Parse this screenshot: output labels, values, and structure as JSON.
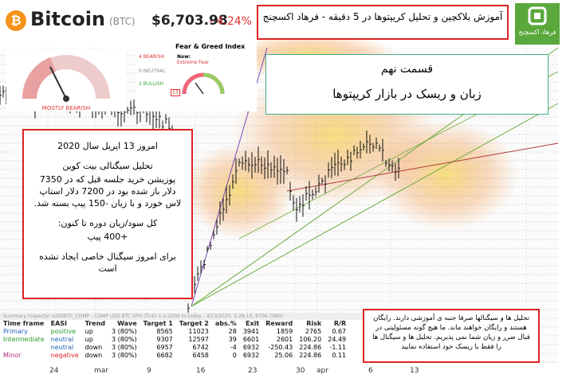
{
  "header": {
    "name": "Bitcoin",
    "symbol": "(BTC)",
    "price": "$6,703.98",
    "change": "- 4.24%"
  },
  "sentiment_gauge": {
    "label": "MOSTLY BEARISH"
  },
  "fear_greed": {
    "title": "Fear & Greed Index",
    "bearish_count": "4",
    "bearish": "BEARISH",
    "neutral_count": "0",
    "neutral": "NEUTRAL",
    "bullish_count": "2",
    "bullish": "BULLISH",
    "now": "Now:",
    "status": "Extreme Fear",
    "value": "13"
  },
  "banner": {
    "text": "آموزش بلاکچین و تحلیل کریپتوها در 5 دقیقه - فرهاد اکسچنج",
    "logo": "فرهاد اکسچنج"
  },
  "episode": {
    "part": "قسمت نهم",
    "title": "زبان و ریسک در بازار کریپتوها"
  },
  "signal_box": {
    "lines": [
      "امروز 13 اپریل سال 2020",
      "تحلیل سیگنالی بیت کوین",
      "پوزیشن خرید جلسه قبل که در 7350 دلار باز شده بود در 7200 دلار استاپ لاس خورد و با زیان -150 پیپ بسته شد.",
      "کل سود/زیان دوره تا کنون:",
      "+400 پیپ",
      "برای امروز سیگنال خاصی ایجاد نشده است"
    ]
  },
  "disclaimer": {
    "text": "تحلیل ها و سیگنالها صرفا جنبه ی آموزشی دارند. رایگان هستند و رایگان خواهند ماند. ما هیچ گونه مسئولیتی در قبال ضرر و زیان شما نمی پذیریم. تحلیل ها و سیگنال ها را فقط با ریسک خود استفاده نمایید"
  },
  "inspector": {
    "title": "Summary inspector (USDBTC_COMP - COMP USD BTC SPO (Tick) 1-1-2000 to today - 4/13/2020, 5:28:10, 6706.7080)",
    "columns": [
      "Time frame",
      "EASI",
      "Trend",
      "Wave",
      "Target 1",
      "Target 2",
      "abs.%",
      "Exit",
      "Reward",
      "Risk",
      "R/R"
    ],
    "rows": [
      [
        "Primary",
        "positive",
        "up",
        "3 (80%)",
        "8565",
        "11023",
        "28",
        "3941",
        "1859",
        "2765",
        "0.67"
      ],
      [
        "Intermediate",
        "neutral",
        "up",
        "3 (80%)",
        "9307",
        "12597",
        "39",
        "6601",
        "2601",
        "106.20",
        "24.49"
      ],
      [
        null,
        "neutral",
        "down",
        "3 (80%)",
        "6957",
        "6742",
        "-4",
        "6932",
        "-250.43",
        "224.86",
        "-1.11"
      ],
      [
        "Minor",
        "negative",
        "down",
        "3 (80%)",
        "6682",
        "6458",
        "0",
        "6932",
        "25.06",
        "224.86",
        "0.11"
      ]
    ]
  },
  "x_axis": {
    "labels": [
      "24",
      "mar",
      "9",
      "16",
      "23",
      "30",
      "apr",
      "6",
      "13"
    ]
  }
}
